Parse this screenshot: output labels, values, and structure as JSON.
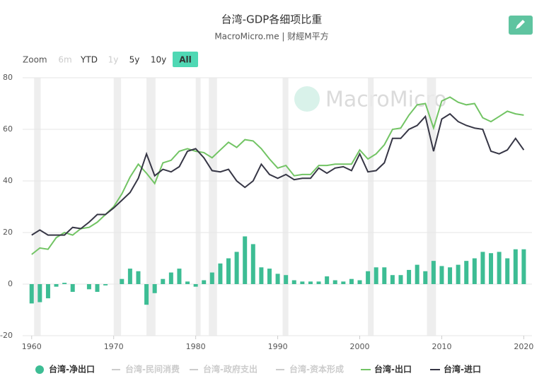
{
  "chart_data": {
    "type": "bar-line",
    "title": "台湾-GDP各细项比重",
    "subtitle": "MacroMicro.me | 财經M平方",
    "watermark": "MacroMicro",
    "zoom": {
      "label": "Zoom",
      "buttons": [
        "6m",
        "YTD",
        "1y",
        "5y",
        "10y",
        "All"
      ],
      "disabled": [
        "6m",
        "1y"
      ],
      "active": "All"
    },
    "x": [
      1960,
      1961,
      1962,
      1963,
      1964,
      1965,
      1966,
      1967,
      1968,
      1969,
      1970,
      1971,
      1972,
      1973,
      1974,
      1975,
      1976,
      1977,
      1978,
      1979,
      1980,
      1981,
      1982,
      1983,
      1984,
      1985,
      1986,
      1987,
      1988,
      1989,
      1990,
      1991,
      1992,
      1993,
      1994,
      1995,
      1996,
      1997,
      1998,
      1999,
      2000,
      2001,
      2002,
      2003,
      2004,
      2005,
      2006,
      2007,
      2008,
      2009,
      2010,
      2011,
      2012,
      2013,
      2014,
      2015,
      2016,
      2017,
      2018,
      2019,
      2020
    ],
    "xlim": [
      1958.9,
      2021
    ],
    "xticks": [
      1960,
      1970,
      1980,
      1990,
      2000,
      2010,
      2020
    ],
    "ylim": [
      -20,
      80
    ],
    "yticks": [
      -20,
      0,
      20,
      40,
      60,
      80
    ],
    "grid": true,
    "recessions": [
      [
        1960.3,
        1961.1
      ],
      [
        1970.0,
        1970.9
      ],
      [
        1974.0,
        1975.1
      ],
      [
        1980.0,
        1980.6
      ],
      [
        1981.6,
        1982.6
      ],
      [
        1990.6,
        1991.3
      ],
      [
        2001.0,
        2001.7
      ],
      [
        2008.2,
        2009.3
      ]
    ],
    "hidden_series": [
      "台湾-民间消费",
      "台湾-政府支出",
      "台湾-资本形成"
    ],
    "series": [
      {
        "name": "台湾-净出口",
        "kind": "bar",
        "color": "#3dbd94",
        "values": [
          -7.5,
          -7,
          -5.5,
          -1,
          0.5,
          -3,
          0,
          -2,
          -3,
          -0.5,
          0,
          2,
          6,
          5,
          -8,
          -3.5,
          2,
          4.5,
          6,
          1,
          -1,
          1.5,
          4.5,
          8,
          10,
          12.5,
          18.5,
          15.5,
          6.5,
          6,
          4,
          3.5,
          1.5,
          1,
          1,
          1,
          3,
          1.5,
          1,
          2,
          1.5,
          5,
          6.5,
          6.5,
          3.5,
          3.5,
          5.5,
          7.5,
          5,
          9,
          7,
          6.5,
          7.5,
          9,
          10,
          12.5,
          12,
          12.5,
          10,
          13.5,
          13.5
        ]
      },
      {
        "name": "台湾-出口",
        "kind": "line",
        "color": "#72c464",
        "values": [
          11.5,
          14,
          13.5,
          18,
          20,
          19,
          21.5,
          22,
          24,
          27,
          30,
          35,
          41.5,
          46.5,
          43,
          39,
          47,
          48,
          51.5,
          52.5,
          51.5,
          51,
          49,
          52,
          55,
          53,
          56,
          55.5,
          52.5,
          48.5,
          45,
          46,
          42,
          42.5,
          42.5,
          46,
          46,
          46.5,
          46.5,
          46.5,
          52,
          48.5,
          50.5,
          54,
          60,
          60.5,
          65.5,
          69.5,
          70,
          60.5,
          71,
          72.5,
          70.5,
          69.5,
          70,
          64.5,
          63,
          65,
          67,
          66,
          65.5
        ]
      },
      {
        "name": "台湾-进口",
        "kind": "line",
        "color": "#363645",
        "values": [
          19,
          21,
          19,
          19,
          19,
          22,
          21.5,
          24,
          27,
          27,
          29.5,
          32.5,
          35.5,
          41,
          50.5,
          42,
          44.5,
          43.5,
          45.5,
          51.5,
          52.5,
          49,
          44,
          43.5,
          44.5,
          40,
          37.5,
          40,
          46.5,
          42.5,
          41,
          42.5,
          40.5,
          41,
          41,
          45,
          43,
          45,
          45.5,
          44,
          50.5,
          43.5,
          44,
          47,
          56.5,
          56.5,
          60,
          61.5,
          65,
          51.5,
          64,
          66,
          63,
          61.5,
          60.5,
          60,
          51.5,
          50.5,
          52,
          56.5,
          52
        ]
      }
    ]
  }
}
